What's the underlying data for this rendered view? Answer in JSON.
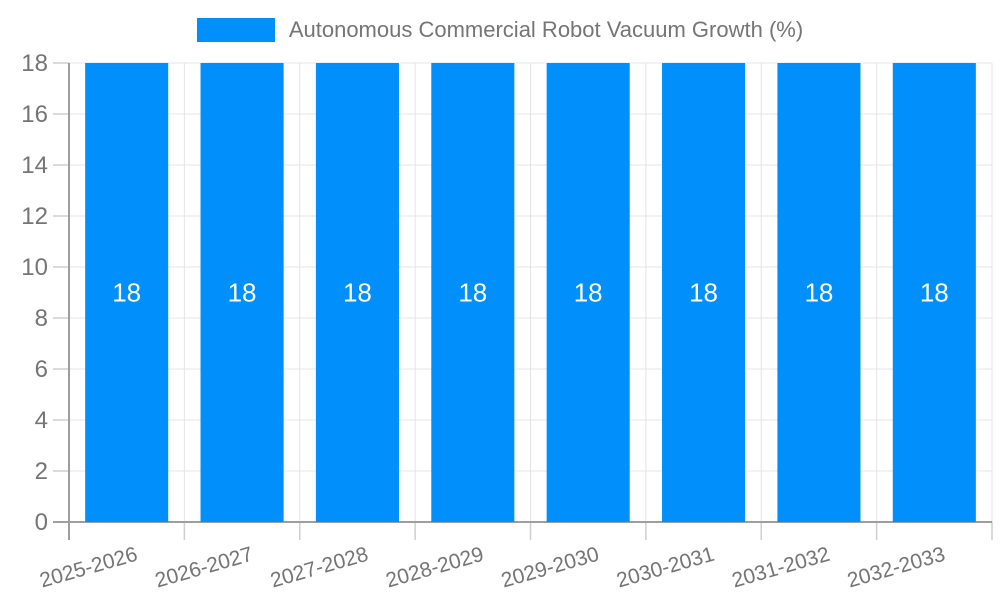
{
  "legend": {
    "label": "Autonomous Commercial Robot Vacuum Growth (%)"
  },
  "chart_data": {
    "type": "bar",
    "title": "Autonomous Commercial Robot Vacuum Growth (%)",
    "categories": [
      "2025-2026",
      "2026-2027",
      "2027-2028",
      "2028-2029",
      "2029-2030",
      "2030-2031",
      "2031-2032",
      "2032-2033"
    ],
    "series": [
      {
        "name": "Autonomous Commercial Robot Vacuum Growth (%)",
        "values": [
          18,
          18,
          18,
          18,
          18,
          18,
          18,
          18
        ]
      }
    ],
    "data_labels": [
      "18",
      "18",
      "18",
      "18",
      "18",
      "18",
      "18",
      "18"
    ],
    "xlabel": "",
    "ylabel": "",
    "ylim": [
      0,
      18
    ],
    "yticks": [
      0,
      2,
      4,
      6,
      8,
      10,
      12,
      14,
      16,
      18
    ],
    "grid": true,
    "legend_position": "top",
    "x_label_rotation_deg": -16,
    "colors": {
      "bar": "#008FFB",
      "text": "#757575",
      "grid": "#e4e4e4",
      "tick": "#cfcfcf",
      "axis": "#9e9e9e",
      "data_label": "#ffffff"
    }
  }
}
